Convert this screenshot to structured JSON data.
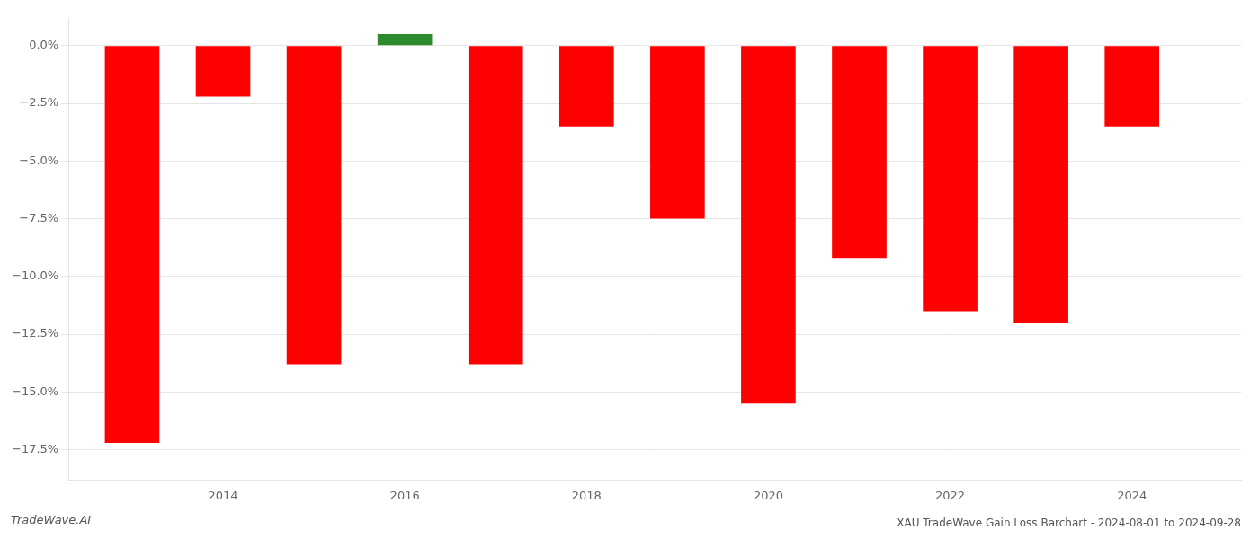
{
  "chart_data": {
    "type": "bar",
    "title": "XAU TradeWave Gain Loss Barchart - 2024-08-01 to 2024-09-28",
    "annotations": [
      "TradeWave.AI"
    ],
    "x": [
      2013,
      2014,
      2015,
      2016,
      2017,
      2018,
      2019,
      2020,
      2021,
      2022,
      2023,
      2024
    ],
    "values": [
      -17.2,
      -2.2,
      -13.8,
      0.5,
      -13.8,
      -3.5,
      -7.5,
      -15.5,
      -9.2,
      -11.5,
      -12.0,
      -3.5
    ],
    "colors": [
      "#ff0000",
      "#ff0000",
      "#ff0000",
      "#2d8a2d",
      "#ff0000",
      "#ff0000",
      "#ff0000",
      "#ff0000",
      "#ff0000",
      "#ff0000",
      "#ff0000",
      "#ff0000"
    ],
    "xlim": [
      2012.3,
      2025.2
    ],
    "xticks": [
      2014,
      2016,
      2018,
      2020,
      2022,
      2024
    ],
    "ylim": [
      -18.8,
      1.2
    ],
    "yticks": [
      {
        "value": 0.0,
        "label": "0.0%"
      },
      {
        "value": -2.5,
        "label": "−2.5%"
      },
      {
        "value": -5.0,
        "label": "−5.0%"
      },
      {
        "value": -7.5,
        "label": "−7.5%"
      },
      {
        "value": -10.0,
        "label": "−10.0%"
      },
      {
        "value": -12.5,
        "label": "−12.5%"
      },
      {
        "value": -15.0,
        "label": "−15.0%"
      },
      {
        "value": -17.5,
        "label": "−17.5%"
      }
    ],
    "grid": "y"
  }
}
